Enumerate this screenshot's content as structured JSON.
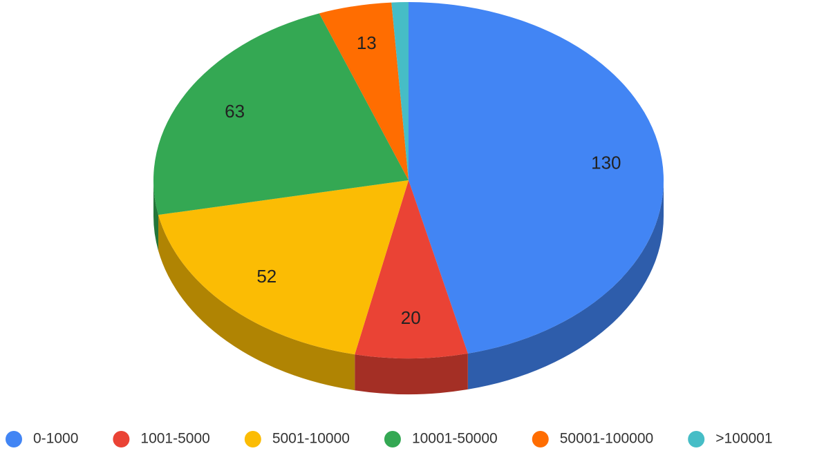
{
  "chart_data": {
    "type": "pie",
    "categories": [
      "0-1000",
      "1001-5000",
      "5001-10000",
      "10001-50000",
      "50001-100000",
      ">100001"
    ],
    "values": [
      130,
      20,
      52,
      63,
      13,
      3
    ],
    "value_labels": [
      "130",
      "20",
      "52",
      "63",
      "13",
      null
    ],
    "colors": [
      "#4285f4",
      "#ea4335",
      "#fbbc04",
      "#34a853",
      "#ff6d01",
      "#46bdc6"
    ],
    "legend": "bottom"
  }
}
